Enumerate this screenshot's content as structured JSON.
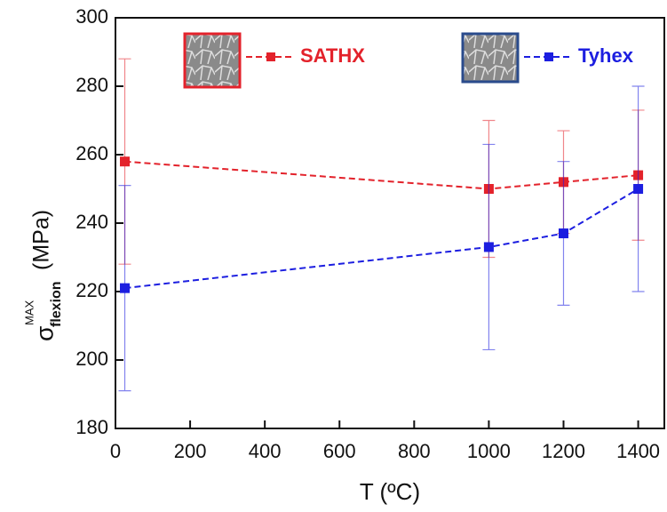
{
  "chart_data": {
    "type": "line",
    "xlabel": "T (ºC)",
    "ylabel": {
      "symbol": "σ",
      "subscript": "flexion",
      "superscript": "MAX",
      "unit": "(MPa)"
    },
    "x": [
      25,
      1000,
      1200,
      1400
    ],
    "series": [
      {
        "name": "SATHX",
        "color": "#e3222b",
        "values": [
          258,
          250,
          252,
          254
        ],
        "errors": [
          30,
          20,
          15,
          19
        ]
      },
      {
        "name": "Tyhex",
        "color": "#1c1ee0",
        "values": [
          221,
          233,
          237,
          250
        ],
        "errors": [
          30,
          30,
          21,
          30
        ]
      }
    ],
    "xlim": [
      0,
      1470
    ],
    "xticks": [
      0,
      200,
      400,
      600,
      800,
      1000,
      1200,
      1400
    ],
    "ylim": [
      180,
      300
    ],
    "yticks": [
      180,
      200,
      220,
      240,
      260,
      280,
      300
    ],
    "grid": false
  }
}
